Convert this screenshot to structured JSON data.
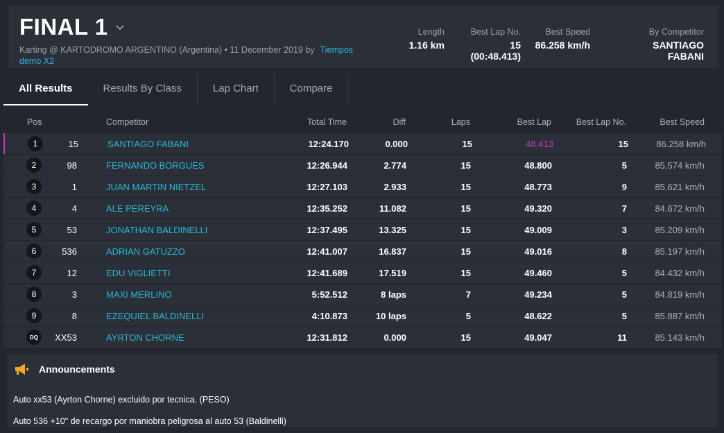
{
  "header": {
    "title": "FINAL 1",
    "subtitle_text": "Karting @ KARTODROMO ARGENTINO (Argentina) • 11 December 2019 by",
    "subtitle_link": "Tiempos demo X2",
    "stats": {
      "length_label": "Length",
      "length_value": "1.16 km",
      "bestlap_label": "Best Lap No.",
      "bestlap_value": "15 (00:48.413)",
      "speed_label": "Best Speed",
      "speed_value": "86.258 km/h",
      "competitor_label": "By Competitor",
      "competitor_value": "SANTIAGO FABANI"
    }
  },
  "tabs": [
    "All Results",
    "Results By Class",
    "Lap Chart",
    "Compare"
  ],
  "table": {
    "headers": {
      "pos": "Pos",
      "competitor": "Competitor",
      "total": "Total Time",
      "diff": "Diff",
      "laps": "Laps",
      "best": "Best Lap",
      "bestno": "Best Lap No.",
      "speed": "Best Speed"
    },
    "rows": [
      {
        "pos": "1",
        "num": "15",
        "name": "SANTIAGO FABANI",
        "total": "12:24.170",
        "diff": "0.000",
        "laps": "15",
        "best": "48.413",
        "bestno": "15",
        "speed": "86.258 km/h"
      },
      {
        "pos": "2",
        "num": "98",
        "name": "FERNANDO BORGUES",
        "total": "12:26.944",
        "diff": "2.774",
        "laps": "15",
        "best": "48.800",
        "bestno": "5",
        "speed": "85.574 km/h"
      },
      {
        "pos": "3",
        "num": "1",
        "name": "JUAN MARTIN NIETZEL",
        "total": "12:27.103",
        "diff": "2.933",
        "laps": "15",
        "best": "48.773",
        "bestno": "9",
        "speed": "85.621 km/h"
      },
      {
        "pos": "4",
        "num": "4",
        "name": "ALE PEREYRA",
        "total": "12:35.252",
        "diff": "11.082",
        "laps": "15",
        "best": "49.320",
        "bestno": "7",
        "speed": "84.672 km/h"
      },
      {
        "pos": "5",
        "num": "53",
        "name": "JONATHAN BALDINELLI",
        "total": "12:37.495",
        "diff": "13.325",
        "laps": "15",
        "best": "49.009",
        "bestno": "3",
        "speed": "85.209 km/h"
      },
      {
        "pos": "6",
        "num": "536",
        "name": "ADRIAN GATUZZO",
        "total": "12:41.007",
        "diff": "16.837",
        "laps": "15",
        "best": "49.016",
        "bestno": "8",
        "speed": "85.197 km/h"
      },
      {
        "pos": "7",
        "num": "12",
        "name": "EDU VIGLIETTI",
        "total": "12:41.689",
        "diff": "17.519",
        "laps": "15",
        "best": "49.460",
        "bestno": "5",
        "speed": "84.432 km/h"
      },
      {
        "pos": "8",
        "num": "3",
        "name": "MAXI MERLINO",
        "total": "5:52.512",
        "diff": "8 laps",
        "laps": "7",
        "best": "49.234",
        "bestno": "5",
        "speed": "84.819 km/h"
      },
      {
        "pos": "9",
        "num": "8",
        "name": "EZEQUIEL BALDINELLI",
        "total": "4:10.873",
        "diff": "10 laps",
        "laps": "5",
        "best": "48.622",
        "bestno": "5",
        "speed": "85.887 km/h"
      },
      {
        "pos": "DQ",
        "num": "XX53",
        "name": "AYRTON CHORNE",
        "total": "12:31.812",
        "diff": "0.000",
        "laps": "15",
        "best": "49.047",
        "bestno": "11",
        "speed": "85.143 km/h"
      }
    ]
  },
  "announcements": {
    "title": "Announcements",
    "items": [
      "Auto xx53 (Ayrton Chorne) excluido por tecnica. (PESO)",
      "Auto 536 +10\" de recargo por maniobra peligrosa al auto 53 (Baldinelli)"
    ]
  },
  "colors": {
    "accent": "#2bb8d6",
    "best_lap": "#c238c6",
    "megaphone": "#f5a623"
  }
}
